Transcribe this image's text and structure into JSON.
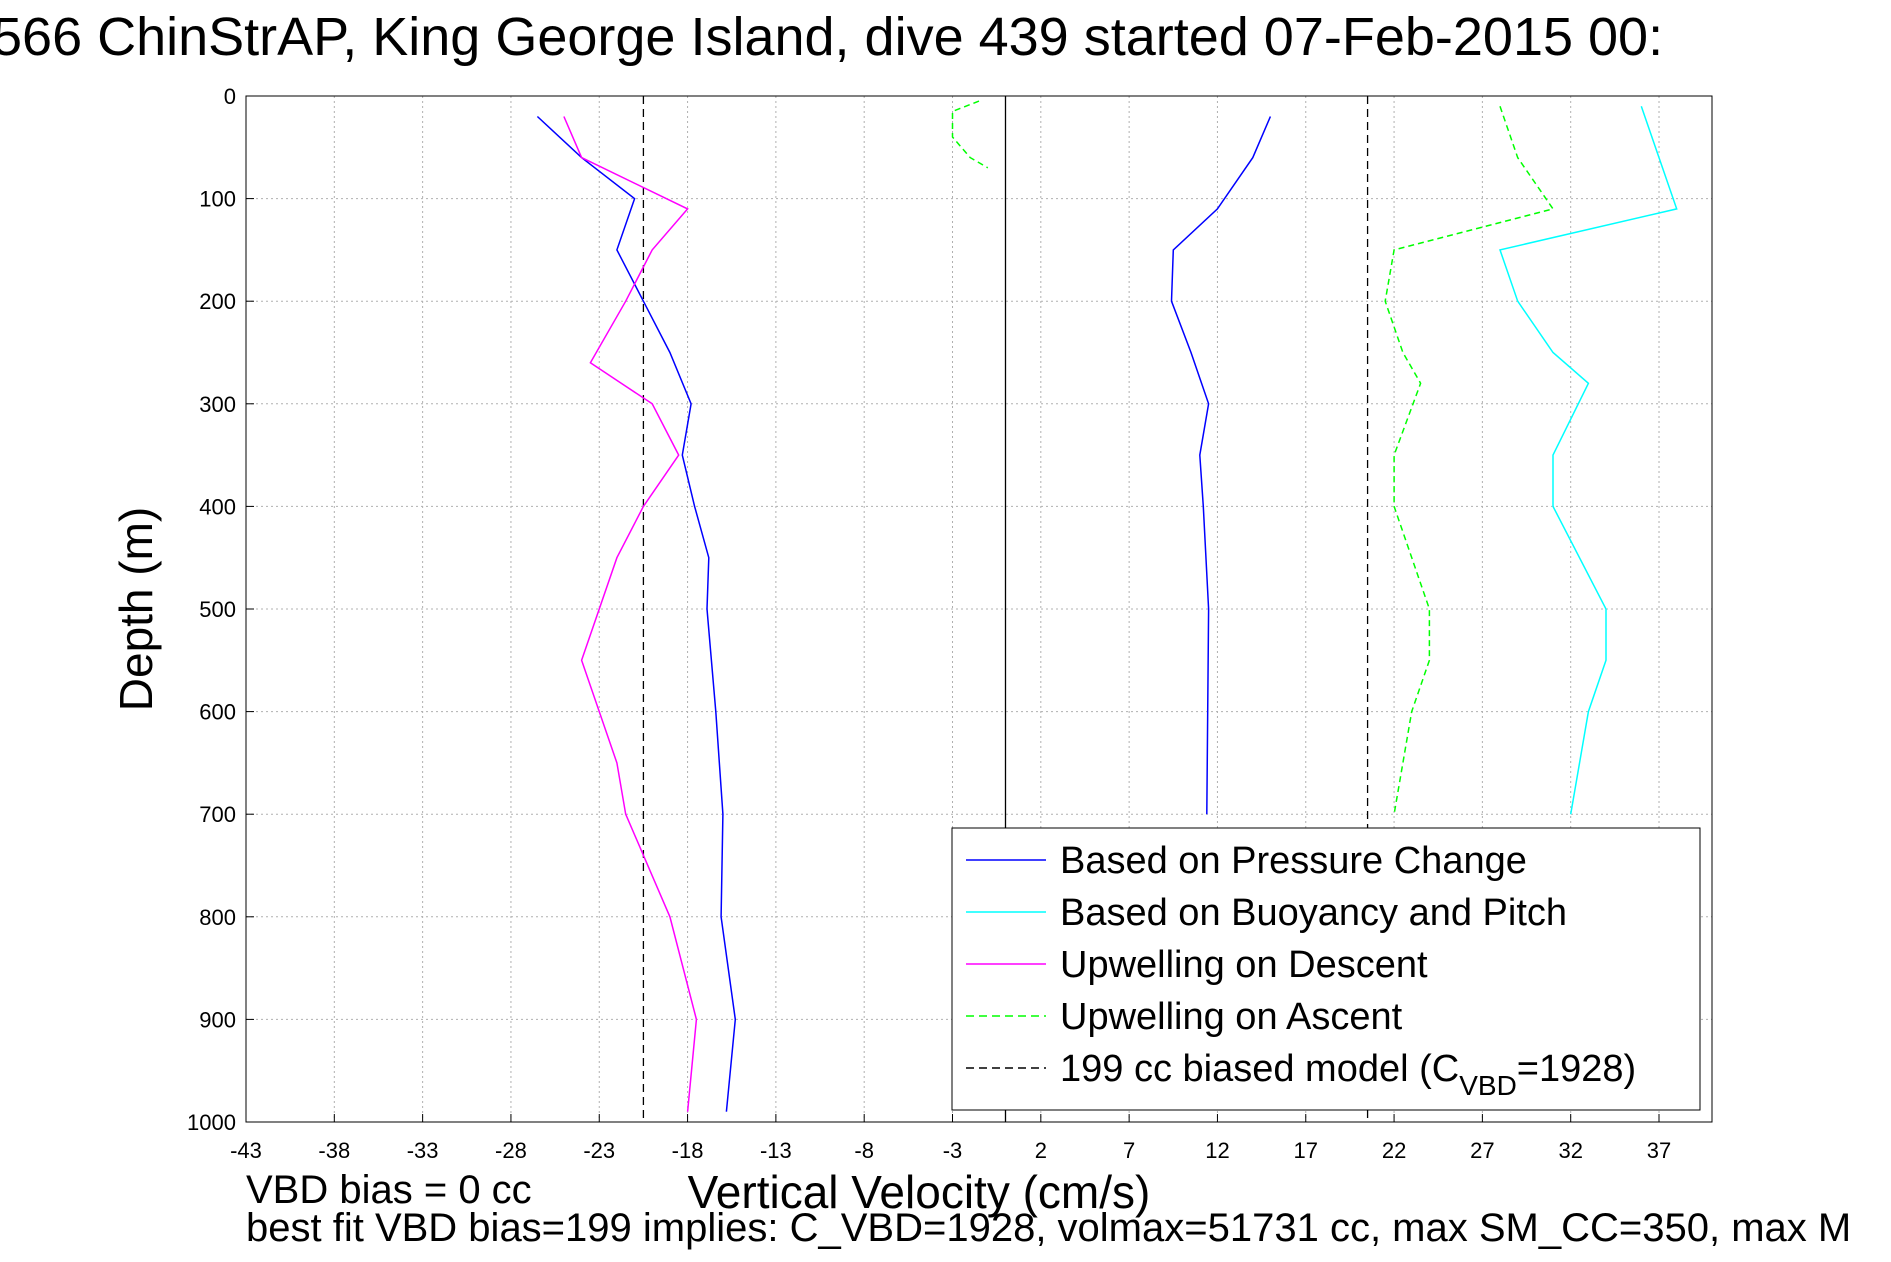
{
  "title": "566 ChinStrAP, King George Island, dive 439 started 07-Feb-2015 00:",
  "footer": {
    "line1": "VBD bias = 0 cc",
    "line2": "best fit VBD bias=199 implies: C_VBD=1928, volmax=51731 cc, max SM_CC=350, max M"
  },
  "chart_data": {
    "type": "line",
    "xlabel": "Vertical Velocity (cm/s)",
    "ylabel": "Depth (m)",
    "xlim": [
      -43,
      40
    ],
    "ylim": [
      0,
      1000
    ],
    "y_reversed": true,
    "xticks": [
      -43,
      -38,
      -33,
      -28,
      -23,
      -18,
      -13,
      -8,
      -3,
      2,
      7,
      12,
      17,
      22,
      27,
      32,
      37
    ],
    "yticks": [
      0,
      100,
      200,
      300,
      400,
      500,
      600,
      700,
      800,
      900,
      1000
    ],
    "grid": true,
    "legend_position": "bottom-right",
    "legend": [
      {
        "label": "Based on Pressure Change",
        "color": "#0000ff",
        "dash": "solid"
      },
      {
        "label": "Based on Buoyancy and Pitch",
        "color": "#00ffff",
        "dash": "solid"
      },
      {
        "label": "Upwelling on Descent",
        "color": "#ff00ff",
        "dash": "solid"
      },
      {
        "label": "Upwelling on Ascent",
        "color": "#00ff00",
        "dash": "dashed"
      },
      {
        "label": "199 cc biased model (C",
        "sub": "VBD",
        "suffix": "=1928)",
        "color": "#000000",
        "dash": "dashed"
      }
    ],
    "series": [
      {
        "color": "#0000ff",
        "dash": "solid",
        "x": [
          -26.5,
          -24,
          -21,
          -22,
          -20.5,
          -19,
          -17.8,
          -18.3,
          -17.6,
          -16.8,
          -16.9,
          -16.4,
          -16.0,
          -16.1,
          -15.3,
          -15.8
        ],
        "y": [
          20,
          60,
          100,
          150,
          200,
          250,
          300,
          350,
          400,
          450,
          500,
          600,
          700,
          800,
          900,
          990
        ]
      },
      {
        "color": "#ff00ff",
        "dash": "solid",
        "x": [
          -25,
          -24,
          -18,
          -20,
          -21.5,
          -23.5,
          -20,
          -18.5,
          -20.5,
          -22,
          -24,
          -22,
          -21.5,
          -19,
          -17.5,
          -18.0
        ],
        "y": [
          20,
          60,
          110,
          150,
          200,
          260,
          300,
          350,
          400,
          450,
          550,
          650,
          700,
          800,
          900,
          990
        ]
      },
      {
        "color": "#0000ff",
        "dash": "solid",
        "x": [
          15,
          14,
          12,
          9.5,
          9.4,
          10.5,
          11.5,
          11,
          11.2,
          11.5,
          11.4
        ],
        "y": [
          20,
          60,
          110,
          150,
          200,
          250,
          300,
          350,
          400,
          500,
          700
        ]
      },
      {
        "color": "#00ffff",
        "dash": "solid",
        "x": [
          36,
          37,
          38,
          28,
          29,
          31,
          33,
          31,
          31,
          34,
          34,
          33,
          32
        ],
        "y": [
          10,
          60,
          110,
          150,
          200,
          250,
          280,
          350,
          400,
          500,
          550,
          600,
          700
        ]
      },
      {
        "color": "#00ff00",
        "dash": "dashed",
        "x": [
          28,
          29,
          31,
          22,
          21.5,
          22.5,
          23.5,
          22,
          22,
          24,
          24,
          23,
          22
        ],
        "y": [
          10,
          60,
          110,
          150,
          200,
          250,
          280,
          350,
          400,
          500,
          550,
          600,
          700
        ]
      },
      {
        "color": "#00ff00",
        "dash": "dashed",
        "x": [
          -1.5,
          -3,
          -3,
          -2,
          -1
        ],
        "y": [
          5,
          15,
          40,
          60,
          70
        ]
      }
    ],
    "reference_lines": [
      {
        "x": -20.5,
        "color": "#000000",
        "dash": "dashed"
      },
      {
        "x": 20.5,
        "color": "#000000",
        "dash": "dashed"
      },
      {
        "x": 0,
        "color": "#000000",
        "dash": "solid"
      }
    ]
  }
}
